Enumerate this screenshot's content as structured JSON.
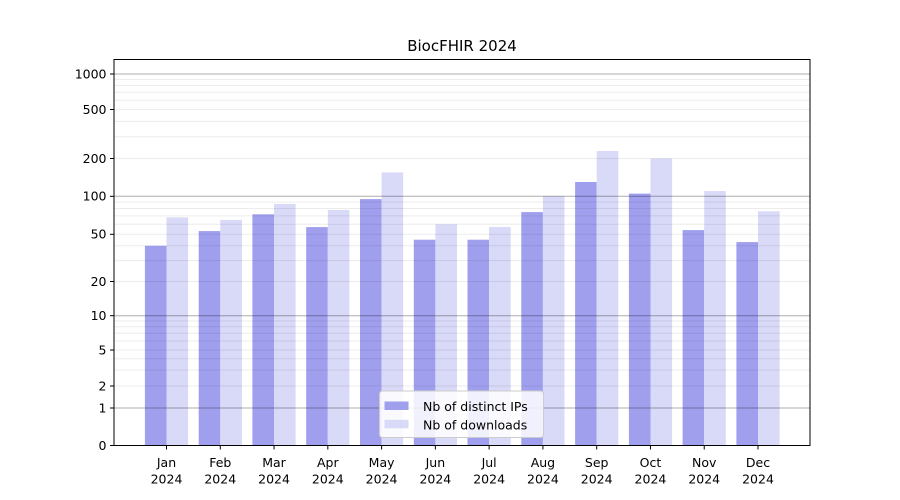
{
  "title": "BiocFHIR 2024",
  "chart_data": {
    "type": "bar",
    "title": "BiocFHIR 2024",
    "categories": [
      "Jan",
      "Feb",
      "Mar",
      "Apr",
      "May",
      "Jun",
      "Jul",
      "Aug",
      "Sep",
      "Oct",
      "Nov",
      "Dec"
    ],
    "year_label": "2024",
    "series": [
      {
        "name": "Nb of distinct IPs",
        "color": "#9f9fee",
        "values": [
          40,
          53,
          72,
          57,
          95,
          45,
          45,
          75,
          130,
          105,
          54,
          43
        ]
      },
      {
        "name": "Nb of downloads",
        "color": "#d9d9f8",
        "values": [
          68,
          65,
          87,
          78,
          155,
          60,
          57,
          100,
          230,
          200,
          110,
          76
        ]
      }
    ],
    "yscale": "symlog",
    "ylim": [
      0,
      1200
    ],
    "yticks": [
      0,
      1,
      2,
      5,
      10,
      20,
      50,
      100,
      200,
      500,
      1000
    ],
    "ytick_labels": [
      "0",
      "1",
      "2",
      "5",
      "10",
      "20",
      "50",
      "100",
      "200",
      "500",
      "1000"
    ],
    "grid": true,
    "legend_position": "lower center inside plot",
    "xlabel": "",
    "ylabel": ""
  }
}
